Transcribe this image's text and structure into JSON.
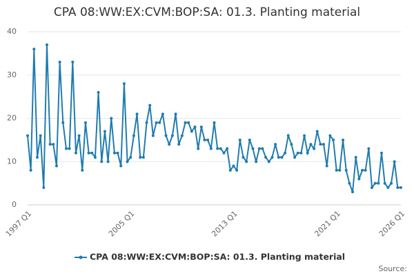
{
  "chart_data": {
    "type": "line",
    "title": "CPA 08:WW:EX:CVM:BOP:SA: 01.3. Planting material",
    "source": "Source:",
    "categories": [
      "1997 Q1",
      null,
      null,
      null,
      null,
      null,
      null,
      null,
      null,
      null,
      null,
      null,
      null,
      null,
      null,
      null,
      null,
      null,
      null,
      null,
      null,
      null,
      null,
      null,
      null,
      null,
      null,
      null,
      null,
      null,
      null,
      null,
      "2005 Q1",
      null,
      null,
      null,
      null,
      null,
      null,
      null,
      null,
      null,
      null,
      null,
      null,
      null,
      null,
      null,
      null,
      null,
      null,
      null,
      null,
      null,
      null,
      null,
      null,
      null,
      null,
      null,
      null,
      null,
      null,
      null,
      "2013 Q1",
      null,
      null,
      null,
      null,
      null,
      null,
      null,
      null,
      null,
      null,
      null,
      null,
      null,
      null,
      null,
      null,
      null,
      null,
      null,
      null,
      null,
      null,
      null,
      null,
      null,
      null,
      null,
      null,
      null,
      null,
      null,
      "2021 Q1",
      null,
      null,
      null,
      null,
      null,
      null,
      null,
      null,
      null,
      null,
      null,
      null,
      null,
      null,
      null,
      null,
      null,
      null,
      null,
      "2026 Q1"
    ],
    "series": [
      {
        "name": "CPA 08:WW:EX:CVM:BOP:SA: 01.3. Planting material",
        "color": "#1f7bb0",
        "values": [
          16,
          8,
          36,
          11,
          16,
          4,
          37,
          14,
          14,
          9,
          33,
          19,
          13,
          13,
          33,
          12,
          16,
          8,
          19,
          12,
          12,
          11,
          26,
          10,
          17,
          10,
          20,
          12,
          12,
          9,
          28,
          10,
          11,
          16,
          21,
          11,
          11,
          19,
          23,
          16,
          19,
          19,
          21,
          16,
          14,
          16,
          21,
          14,
          16,
          19,
          19,
          17,
          18,
          13,
          18,
          15,
          15,
          13,
          19,
          13,
          13,
          12,
          13,
          8,
          9,
          8,
          15,
          11,
          10,
          15,
          13,
          10,
          13,
          13,
          11,
          10,
          11,
          14,
          11,
          11,
          12,
          16,
          14,
          11,
          12,
          12,
          16,
          12,
          14,
          13,
          17,
          14,
          14,
          9,
          16,
          15,
          8,
          8,
          15,
          8,
          5,
          3,
          11,
          6,
          8,
          8,
          13,
          4,
          5,
          5,
          12,
          5,
          4,
          5,
          10,
          4,
          4
        ]
      }
    ],
    "ylim": [
      0,
      40
    ],
    "yticks": [
      0,
      10,
      20,
      30,
      40
    ],
    "grid": true,
    "legend": "bottom"
  }
}
